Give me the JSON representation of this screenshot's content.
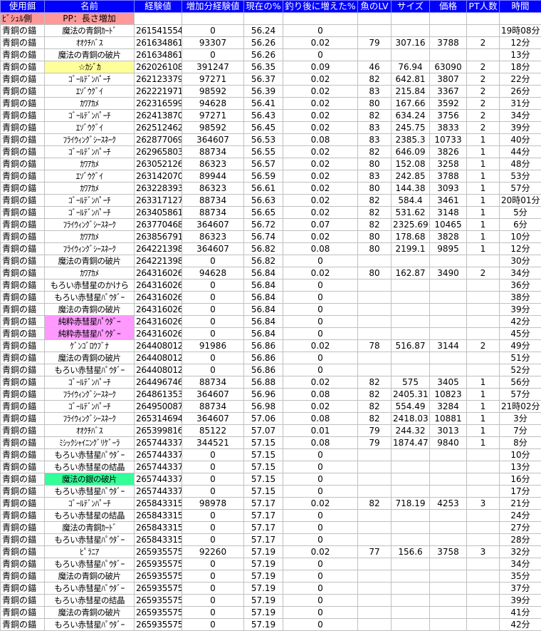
{
  "columns": [
    "使用餌",
    "名前",
    "経験値",
    "増加分経験値",
    "現在の%",
    "釣り後に増えた%",
    "魚のLV",
    "サイズ",
    "価格",
    "PT人数",
    "時間"
  ],
  "pp_row": {
    "anchor": "ﾋﾞｼｭﾙ側",
    "name": "PP：長さ増加"
  },
  "highlight_colors": {
    "header": "#0000ff",
    "pp": "#ff9999",
    "yellow": "#ffff99",
    "pink": "#ff99ff",
    "green": "#33ff99"
  },
  "rows": [
    [
      "青銅の錨",
      "魔法の青銅ｶｰﾄﾞ",
      "261541554",
      "0",
      "56.24",
      "0",
      "",
      "",
      "",
      "",
      "19時08分",
      ""
    ],
    [
      "青銅の錨",
      "ｵｵｸﾁﾊﾞｽ",
      "261634861",
      "93307",
      "56.26",
      "0.02",
      "79",
      "307.16",
      "3788",
      "2",
      "12分",
      ""
    ],
    [
      "青銅の錨",
      "魔法の青銅の破片",
      "261634861",
      "0",
      "56.26",
      "0",
      "",
      "",
      "",
      "",
      "13分",
      ""
    ],
    [
      "青銅の錨",
      "☆ｶｼﾞｶ",
      "262026108",
      "391247",
      "56.35",
      "0.09",
      "46",
      "76.94",
      "63090",
      "2",
      "18分",
      "yellow"
    ],
    [
      "青銅の錨",
      "ｺﾞｰﾙﾃﾞﾝﾊﾟｰﾁ",
      "262123379",
      "97271",
      "56.37",
      "0.02",
      "82",
      "642.81",
      "3807",
      "2",
      "22分",
      ""
    ],
    [
      "青銅の錨",
      "ｴｿﾞｳｸﾞｲ",
      "262221971",
      "98592",
      "56.39",
      "0.02",
      "83",
      "215.84",
      "3367",
      "2",
      "26分",
      ""
    ],
    [
      "青銅の錨",
      "ｶﾜｱｶﾒ",
      "262316599",
      "94628",
      "56.41",
      "0.02",
      "80",
      "167.66",
      "3592",
      "2",
      "31分",
      ""
    ],
    [
      "青銅の錨",
      "ｺﾞｰﾙﾃﾞﾝﾊﾟｰﾁ",
      "262413870",
      "97271",
      "56.43",
      "0.02",
      "82",
      "634.24",
      "3756",
      "2",
      "34分",
      ""
    ],
    [
      "青銅の錨",
      "ｴｿﾞｳｸﾞｲ",
      "262512462",
      "98592",
      "56.45",
      "0.02",
      "83",
      "245.75",
      "3833",
      "2",
      "39分",
      ""
    ],
    [
      "青銅の錨",
      "ﾌﾗｲｳｨﾝｸﾞｼｰｽﾈｰｸ",
      "262877069",
      "364607",
      "56.53",
      "0.08",
      "83",
      "2385.3",
      "10733",
      "1",
      "40分",
      ""
    ],
    [
      "青銅の錨",
      "ｺﾞｰﾙﾃﾞﾝﾊﾟｰﾁ",
      "262965803",
      "88734",
      "56.55",
      "0.02",
      "82",
      "646.09",
      "3826",
      "1",
      "44分",
      ""
    ],
    [
      "青銅の錨",
      "ｶﾜｱｶﾒ",
      "263052126",
      "86323",
      "56.57",
      "0.02",
      "80",
      "152.08",
      "3258",
      "1",
      "48分",
      ""
    ],
    [
      "青銅の錨",
      "ｴｿﾞｳｸﾞｲ",
      "263142070",
      "89944",
      "56.59",
      "0.02",
      "83",
      "242.85",
      "3788",
      "1",
      "53分",
      ""
    ],
    [
      "青銅の錨",
      "ｶﾜｱｶﾒ",
      "263228393",
      "86323",
      "56.61",
      "0.02",
      "80",
      "144.38",
      "3093",
      "1",
      "57分",
      ""
    ],
    [
      "青銅の錨",
      "ｺﾞｰﾙﾃﾞﾝﾊﾟｰﾁ",
      "263317127",
      "88734",
      "56.63",
      "0.02",
      "82",
      "584.4",
      "3461",
      "1",
      "20時01分",
      ""
    ],
    [
      "青銅の錨",
      "ｺﾞｰﾙﾃﾞﾝﾊﾟｰﾁ",
      "263405861",
      "88734",
      "56.65",
      "0.02",
      "82",
      "531.62",
      "3148",
      "1",
      "5分",
      ""
    ],
    [
      "青銅の錨",
      "ﾌﾗｲｳｨﾝｸﾞｼｰｽﾈｰｸ",
      "263770468",
      "364607",
      "56.72",
      "0.07",
      "82",
      "2325.69",
      "10465",
      "1",
      "6分",
      ""
    ],
    [
      "青銅の錨",
      "ｶﾜｱｶﾒ",
      "263856791",
      "86323",
      "56.74",
      "0.02",
      "80",
      "178.68",
      "3828",
      "1",
      "10分",
      ""
    ],
    [
      "青銅の錨",
      "ﾌﾗｲｳｨﾝｸﾞｼｰｽﾈｰｸ",
      "264221398",
      "364607",
      "56.82",
      "0.08",
      "80",
      "2199.1",
      "9895",
      "1",
      "12分",
      ""
    ],
    [
      "青銅の錨",
      "魔法の青銅の破片",
      "264221398",
      "0",
      "56.82",
      "0",
      "",
      "",
      "",
      "",
      "30分",
      ""
    ],
    [
      "青銅の錨",
      "ｶﾜｱｶﾒ",
      "264316026",
      "94628",
      "56.84",
      "0.02",
      "80",
      "162.87",
      "3490",
      "2",
      "34分",
      ""
    ],
    [
      "青銅の錨",
      "もろい赤彗星のかけら",
      "264316026",
      "0",
      "56.84",
      "0",
      "",
      "",
      "",
      "",
      "36分",
      ""
    ],
    [
      "青銅の錨",
      "もろい赤彗星ﾊﾟｳﾀﾞｰ",
      "264316026",
      "0",
      "56.84",
      "0",
      "",
      "",
      "",
      "",
      "38分",
      ""
    ],
    [
      "青銅の錨",
      "魔法の青銅の破片",
      "264316026",
      "0",
      "56.84",
      "0",
      "",
      "",
      "",
      "",
      "39分",
      ""
    ],
    [
      "青銅の錨",
      "純粋赤彗星ﾊﾟｳﾀﾞｰ",
      "264316026",
      "0",
      "56.84",
      "0",
      "",
      "",
      "",
      "",
      "42分",
      "pink"
    ],
    [
      "青銅の錨",
      "純粋赤彗星ﾊﾟｳﾀﾞｰ",
      "264316026",
      "0",
      "56.84",
      "0",
      "",
      "",
      "",
      "",
      "45分",
      "pink"
    ],
    [
      "青銅の錨",
      "ｹﾞﾝｺﾞﾛｳﾌﾞﾅ",
      "264408012",
      "91986",
      "56.86",
      "0.02",
      "78",
      "516.87",
      "3144",
      "2",
      "49分",
      ""
    ],
    [
      "青銅の錨",
      "魔法の青銅の破片",
      "264408012",
      "0",
      "56.86",
      "0",
      "",
      "",
      "",
      "",
      "51分",
      ""
    ],
    [
      "青銅の錨",
      "もろい赤彗星ﾊﾟｳﾀﾞｰ",
      "264408012",
      "0",
      "56.86",
      "0",
      "",
      "",
      "",
      "",
      "52分",
      ""
    ],
    [
      "青銅の錨",
      "ｺﾞｰﾙﾃﾞﾝﾊﾟｰﾁ",
      "264496746",
      "88734",
      "56.88",
      "0.02",
      "82",
      "575",
      "3405",
      "1",
      "56分",
      ""
    ],
    [
      "青銅の錨",
      "ﾌﾗｲｳｨﾝｸﾞｼｰｽﾈｰｸ",
      "264861353",
      "364607",
      "56.96",
      "0.08",
      "82",
      "2405.31",
      "10823",
      "1",
      "57分",
      ""
    ],
    [
      "青銅の錨",
      "ｺﾞｰﾙﾃﾞﾝﾊﾟｰﾁ",
      "264950087",
      "88734",
      "56.98",
      "0.02",
      "82",
      "554.49",
      "3284",
      "1",
      "21時02分",
      ""
    ],
    [
      "青銅の錨",
      "ﾌﾗｲｳｨﾝｸﾞｼｰｽﾈｰｸ",
      "265314694",
      "364607",
      "57.06",
      "0.08",
      "82",
      "2418.03",
      "10881",
      "1",
      "3分",
      ""
    ],
    [
      "青銅の錨",
      "ｵｵｸﾁﾊﾞｽ",
      "265399816",
      "85122",
      "57.07",
      "0.01",
      "79",
      "244.32",
      "3013",
      "1",
      "7分",
      ""
    ],
    [
      "青銅の錨",
      "ﾐｼｯｸｼｬｲﾆﾝｸﾞﾘｹﾞｰﾗ",
      "265744337",
      "344521",
      "57.15",
      "0.08",
      "79",
      "1874.47",
      "9840",
      "1",
      "8分",
      ""
    ],
    [
      "青銅の錨",
      "もろい赤彗星ﾊﾟｳﾀﾞｰ",
      "265744337",
      "0",
      "57.15",
      "0",
      "",
      "",
      "",
      "",
      "10分",
      ""
    ],
    [
      "青銅の錨",
      "もろい赤彗星の結晶",
      "265744337",
      "0",
      "57.15",
      "0",
      "",
      "",
      "",
      "",
      "13分",
      ""
    ],
    [
      "青銅の錨",
      "魔法の銀の破片",
      "265744337",
      "0",
      "57.15",
      "0",
      "",
      "",
      "",
      "",
      "16分",
      "green"
    ],
    [
      "青銅の錨",
      "もろい赤彗星ﾊﾟｳﾀﾞｰ",
      "265744337",
      "0",
      "57.15",
      "0",
      "",
      "",
      "",
      "",
      "17分",
      ""
    ],
    [
      "青銅の錨",
      "ｺﾞｰﾙﾃﾞﾝﾊﾟｰﾁ",
      "265843315",
      "98978",
      "57.17",
      "0.02",
      "82",
      "718.19",
      "4253",
      "3",
      "21分",
      ""
    ],
    [
      "青銅の錨",
      "もろい赤彗星の結晶",
      "265843315",
      "0",
      "57.17",
      "0",
      "",
      "",
      "",
      "",
      "24分",
      ""
    ],
    [
      "青銅の錨",
      "魔法の青銅ｶｰﾄﾞ",
      "265843315",
      "0",
      "57.17",
      "0",
      "",
      "",
      "",
      "",
      "27分",
      ""
    ],
    [
      "青銅の錨",
      "もろい赤彗星ﾊﾟｳﾀﾞｰ",
      "265843315",
      "0",
      "57.17",
      "0",
      "",
      "",
      "",
      "",
      "28分",
      ""
    ],
    [
      "青銅の錨",
      "ﾋﾟﾗﾆｱ",
      "265935575",
      "92260",
      "57.19",
      "0.02",
      "77",
      "156.6",
      "3758",
      "3",
      "32分",
      ""
    ],
    [
      "青銅の錨",
      "もろい赤彗星ﾊﾟｳﾀﾞｰ",
      "265935575",
      "0",
      "57.19",
      "0",
      "",
      "",
      "",
      "",
      "34分",
      ""
    ],
    [
      "青銅の錨",
      "魔法の青銅の破片",
      "265935575",
      "0",
      "57.19",
      "0",
      "",
      "",
      "",
      "",
      "35分",
      ""
    ],
    [
      "青銅の錨",
      "もろい赤彗星ﾊﾟｳﾀﾞｰ",
      "265935575",
      "0",
      "57.19",
      "0",
      "",
      "",
      "",
      "",
      "37分",
      ""
    ],
    [
      "青銅の錨",
      "もろい赤彗星の結晶",
      "265935575",
      "0",
      "57.19",
      "0",
      "",
      "",
      "",
      "",
      "39分",
      ""
    ],
    [
      "青銅の錨",
      "魔法の青銅の破片",
      "265935575",
      "0",
      "57.19",
      "0",
      "",
      "",
      "",
      "",
      "41分",
      ""
    ],
    [
      "青銅の錨",
      "もろい赤彗星ﾊﾟｳﾀﾞｰ",
      "265935575",
      "0",
      "57.19",
      "0",
      "",
      "",
      "",
      "",
      "42分",
      ""
    ]
  ]
}
